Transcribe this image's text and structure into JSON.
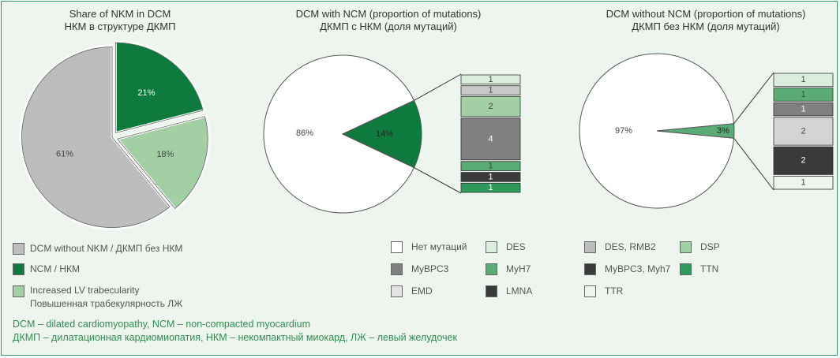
{
  "chart_data": [
    {
      "type": "pie",
      "title": "Share of NKM in DCM",
      "subtitle": "НКМ в структуре ДКМП",
      "slices": [
        {
          "label": "61%",
          "value": 61,
          "color": "#bdbdbd",
          "name": "DCM without NKM / ДКМП без НКМ"
        },
        {
          "label": "21%",
          "value": 21,
          "color": "#0f7a3e",
          "name": "NCM / НКМ"
        },
        {
          "label": "18%",
          "value": 18,
          "color": "#a3cfa5",
          "name": "Increased LV trabecularity"
        }
      ]
    },
    {
      "type": "pie",
      "title": "DCM with NCM (proportion of mutations)",
      "subtitle": "ДКМП с НКМ (доля мутаций)",
      "slices": [
        {
          "label": "86%",
          "value": 86,
          "color": "#ffffff"
        },
        {
          "label": "14%",
          "value": 14,
          "color": "#0f7a3e"
        }
      ],
      "stack": [
        {
          "label": "1",
          "value": 1,
          "color": "#dbeedd"
        },
        {
          "label": "1",
          "value": 1,
          "color": "#c9c9c9"
        },
        {
          "label": "2",
          "value": 2,
          "color": "#a3cfa5"
        },
        {
          "label": "4",
          "value": 4,
          "color": "#808080"
        },
        {
          "label": "1",
          "value": 1,
          "color": "#5bab76"
        },
        {
          "label": "1",
          "value": 1,
          "color": "#3a3a3a"
        },
        {
          "label": "1",
          "value": 1,
          "color": "#2e9a5b"
        }
      ]
    },
    {
      "type": "pie",
      "title": "DCM without NCM (proportion of mutations)",
      "subtitle": "ДКМП без НКМ (доля мутаций)",
      "slices": [
        {
          "label": "97%",
          "value": 97,
          "color": "#ffffff"
        },
        {
          "label": "3%",
          "value": 3,
          "color": "#5bab76"
        }
      ],
      "stack": [
        {
          "label": "1",
          "value": 1,
          "color": "#dbeedd"
        },
        {
          "label": "1",
          "value": 1,
          "color": "#5bab76"
        },
        {
          "label": "1",
          "value": 1,
          "color": "#808080"
        },
        {
          "label": "2",
          "value": 2,
          "color": "#d4d4d4"
        },
        {
          "label": "2",
          "value": 2,
          "color": "#3a3a3a"
        },
        {
          "label": "1",
          "value": 1,
          "color": "#eef5ee"
        }
      ]
    }
  ],
  "legend_left": [
    {
      "text": "DCM without NKM / ДКМП без НКМ",
      "color": "#bdbdbd"
    },
    {
      "text": "NCM / НКМ",
      "color": "#0f7a3e"
    },
    {
      "text": "Increased LV trabecularity",
      "text2": "Повышенная трабекулярность ЛЖ",
      "color": "#a3cfa5"
    }
  ],
  "legend_mutations": [
    {
      "text": "Нет мутаций",
      "color": "#ffffff"
    },
    {
      "text": "DES",
      "color": "#dbeedd"
    },
    {
      "text": "DES, RMB2",
      "color": "#bdbdbd"
    },
    {
      "text": "DSP",
      "color": "#a3cfa5"
    },
    {
      "text": "MyBPC3",
      "color": "#808080"
    },
    {
      "text": "MyH7",
      "color": "#5bab76"
    },
    {
      "text": "MyBPC3, Myh7",
      "color": "#3a3a3a"
    },
    {
      "text": "TTN",
      "color": "#2e9a5b"
    },
    {
      "text": "EMD",
      "color": "#e3e3e3"
    },
    {
      "text": "LMNA",
      "color": "#3a3a3a"
    },
    {
      "text": "TTR",
      "color": "#eef5ee"
    }
  ],
  "footnotes": [
    "DCM – dilated cardiomyopathy, NCM – non-compacted myocardium",
    "ДКМП – дилатационная кардиомиопатия, НКМ – некомпактный миокард, ЛЖ – левый желудочек"
  ]
}
